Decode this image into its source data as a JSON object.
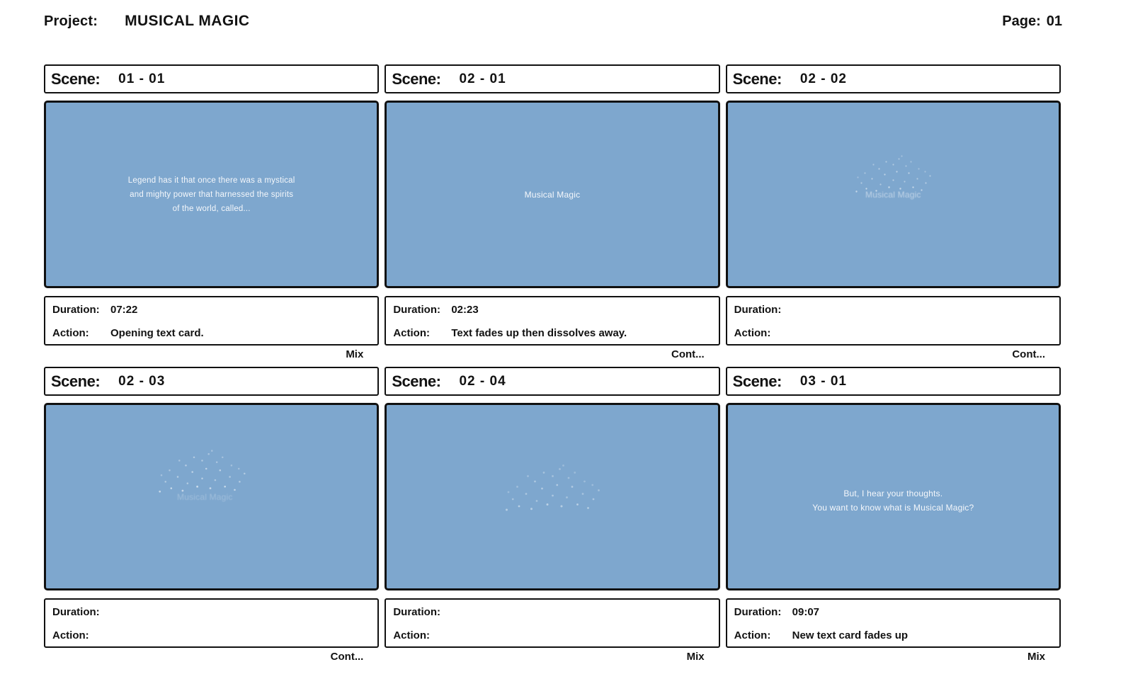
{
  "header": {
    "project_label": "Project:",
    "project_name": "MUSICAL MAGIC",
    "page_label": "Page:",
    "page_number": "01"
  },
  "labels": {
    "scene": "Scene:",
    "duration": "Duration:",
    "action": "Action:"
  },
  "colors": {
    "frame_blue": "#7ea7ce",
    "border_black": "#111111",
    "frame_text_white": "#f4f7fb"
  },
  "panels": [
    {
      "scene": "01 - 01",
      "frame_lines": [
        "Legend has it that once there was a mystical",
        "and mighty power that harnessed the spirits",
        "of the world, called..."
      ],
      "duration": "07:22",
      "action": "Opening text card.",
      "transition": "Mix"
    },
    {
      "scene": "02 - 01",
      "frame_lines": [
        "Musical Magic"
      ],
      "duration": "02:23",
      "action": "Text fades up then dissolves away.",
      "transition": "Cont..."
    },
    {
      "scene": "02 - 02",
      "frame_lines": [
        "Musical Magic"
      ],
      "frame_effect": "text dissolving into particles",
      "duration": "",
      "action": "",
      "transition": "Cont..."
    },
    {
      "scene": "02 - 03",
      "frame_lines": [
        "Musical Magic"
      ],
      "frame_effect": "text mostly dissolved into particles",
      "duration": "",
      "action": "",
      "transition": "Cont..."
    },
    {
      "scene": "02 - 04",
      "frame_lines": [],
      "frame_effect": "particles only, text gone",
      "duration": "",
      "action": "",
      "transition": "Mix"
    },
    {
      "scene": "03 - 01",
      "frame_lines": [
        "But, I hear your thoughts.",
        "You want to know what is Musical Magic?"
      ],
      "duration": "09:07",
      "action": "New text card fades up",
      "transition": "Mix"
    }
  ]
}
